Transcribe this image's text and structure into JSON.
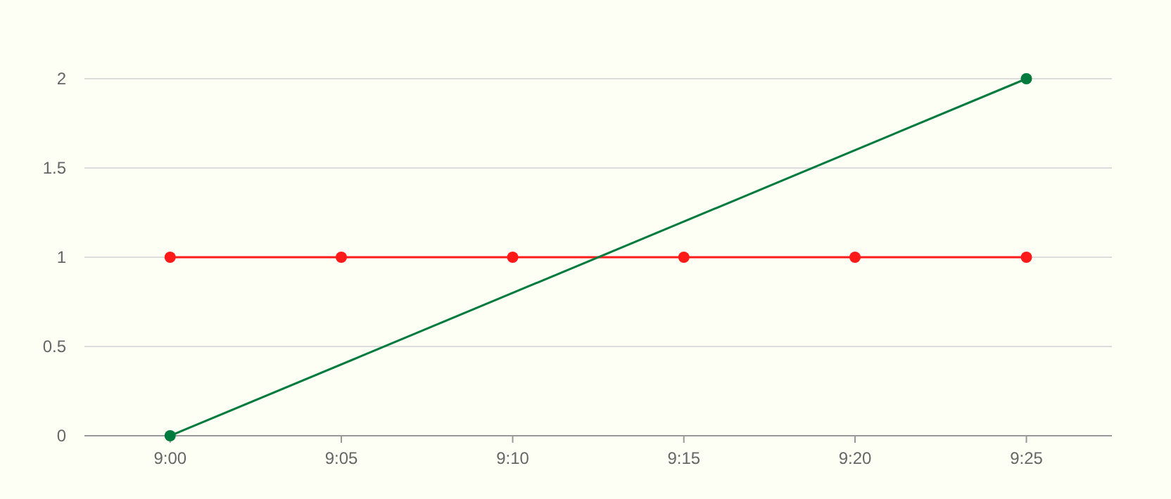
{
  "chart_data": {
    "type": "line",
    "xlim": [
      8.9583,
      9.4583
    ],
    "ylim": [
      0,
      2
    ],
    "xticks": [
      {
        "value": 9,
        "label": "9:00"
      },
      {
        "value": 9.0833,
        "label": "9:05"
      },
      {
        "value": 9.1667,
        "label": "9:10"
      },
      {
        "value": 9.25,
        "label": "9:15"
      },
      {
        "value": 9.3333,
        "label": "9:20"
      },
      {
        "value": 9.4167,
        "label": "9:25"
      }
    ],
    "yticks": [
      0,
      0.5,
      1,
      1.5,
      2
    ],
    "grid": "y",
    "marker": "circle",
    "line_style": "solid",
    "series": [
      {
        "color": "#ff1a1a",
        "x": [
          9,
          9.0833,
          9.1667,
          9.25,
          9.3333,
          9.4167
        ],
        "values": [
          1,
          1,
          1,
          1,
          1,
          1
        ]
      },
      {
        "color": "#007a3d",
        "x": [
          9,
          9.4167
        ],
        "values": [
          0,
          2
        ]
      }
    ]
  }
}
